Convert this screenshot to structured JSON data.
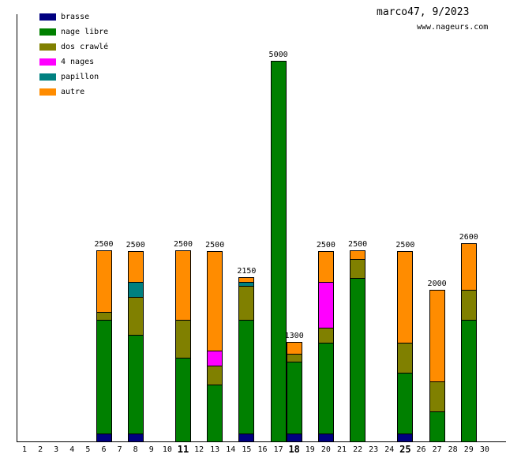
{
  "header": {
    "title": "marco47, 9/2023",
    "site": "www.nageurs.com"
  },
  "legend": [
    {
      "label": "brasse",
      "color": "#000080"
    },
    {
      "label": "nage libre",
      "color": "#008000"
    },
    {
      "label": "dos crawlé",
      "color": "#808000"
    },
    {
      "label": "4 nages",
      "color": "#ff00ff"
    },
    {
      "label": "papillon",
      "color": "#008080"
    },
    {
      "label": "autre",
      "color": "#ff8c00"
    }
  ],
  "chart_data": {
    "type": "bar",
    "stacked": true,
    "title": "marco47, 9/2023",
    "x_min": 1,
    "x_max": 30,
    "bold_x_ticks": [
      11,
      18,
      25
    ],
    "grid": false,
    "legend_position": "top-left",
    "y_unit_meters": true,
    "series_order": [
      "brasse",
      "nage libre",
      "dos crawlé",
      "4 nages",
      "papillon",
      "autre"
    ],
    "bars": [
      {
        "day": 6,
        "total": 2500,
        "segments": {
          "brasse": 100,
          "nage libre": 1500,
          "dos crawlé": 100,
          "autre": 800
        }
      },
      {
        "day": 8,
        "total": 2500,
        "segments": {
          "brasse": 100,
          "nage libre": 1300,
          "dos crawlé": 500,
          "papillon": 200,
          "autre": 400
        }
      },
      {
        "day": 11,
        "total": 2500,
        "segments": {
          "nage libre": 1100,
          "dos crawlé": 500,
          "autre": 900
        }
      },
      {
        "day": 13,
        "total": 2500,
        "segments": {
          "nage libre": 750,
          "dos crawlé": 250,
          "4 nages": 200,
          "autre": 1300
        }
      },
      {
        "day": 15,
        "total": 2150,
        "segments": {
          "brasse": 100,
          "nage libre": 1500,
          "dos crawlé": 450,
          "papillon": 50,
          "autre": 50
        }
      },
      {
        "day": 17,
        "total": 5000,
        "segments": {
          "nage libre": 5000
        }
      },
      {
        "day": 18,
        "total": 1300,
        "segments": {
          "brasse": 100,
          "nage libre": 950,
          "dos crawlé": 100,
          "autre": 150
        }
      },
      {
        "day": 20,
        "total": 2500,
        "segments": {
          "brasse": 100,
          "nage libre": 1200,
          "dos crawlé": 200,
          "4 nages": 600,
          "autre": 400
        }
      },
      {
        "day": 22,
        "total": 2500,
        "segments": {
          "nage libre": 2150,
          "dos crawlé": 250,
          "autre": 100
        }
      },
      {
        "day": 25,
        "total": 2500,
        "segments": {
          "brasse": 100,
          "nage libre": 800,
          "dos crawlé": 400,
          "autre": 1200
        }
      },
      {
        "day": 27,
        "total": 2000,
        "segments": {
          "nage libre": 400,
          "dos crawlé": 400,
          "autre": 1200
        }
      },
      {
        "day": 29,
        "total": 2600,
        "segments": {
          "nage libre": 1600,
          "dos crawlé": 400,
          "autre": 600
        }
      }
    ]
  }
}
